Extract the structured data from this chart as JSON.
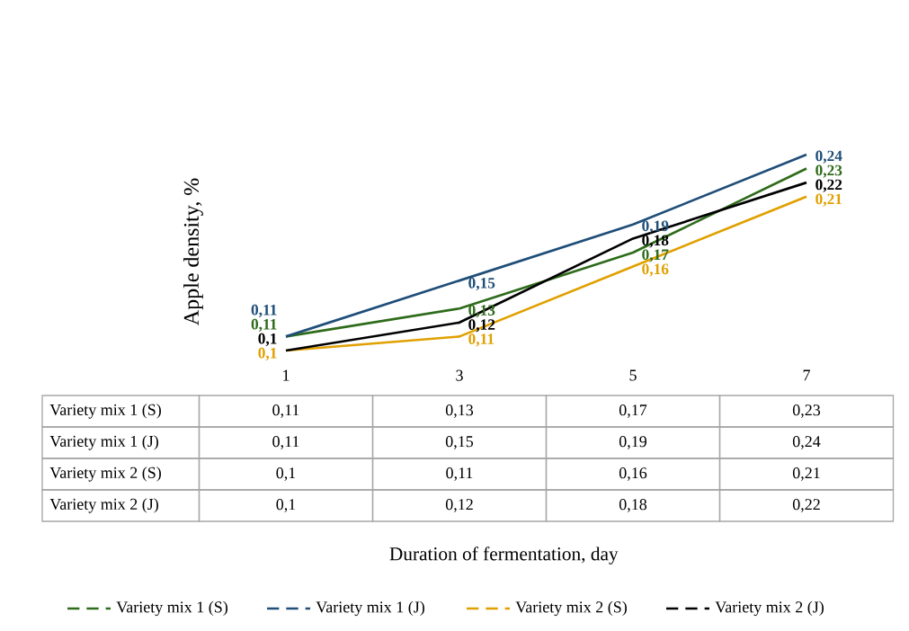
{
  "chart_data": {
    "type": "line",
    "ylabel": "Apple density, %",
    "annotations": [
      "Duration of fermentation, day"
    ],
    "categories": [
      "1",
      "3",
      "5",
      "7"
    ],
    "series": [
      {
        "name": "Variety mix 1 (S)",
        "color": "#2e6b1a",
        "values": [
          0.11,
          0.13,
          0.17,
          0.23
        ],
        "value_labels": [
          "0,11",
          "0,13",
          "0,17",
          "0,23"
        ]
      },
      {
        "name": "Variety mix 1 (J)",
        "color": "#1f4e79",
        "values": [
          0.11,
          0.15,
          0.19,
          0.24
        ],
        "value_labels": [
          "0,11",
          "0,15",
          "0,19",
          "0,24"
        ]
      },
      {
        "name": "Variety mix 2 (S)",
        "color": "#e0a000",
        "values": [
          0.1,
          0.11,
          0.16,
          0.21
        ],
        "value_labels": [
          "0,1",
          "0,11",
          "0,16",
          "0,21"
        ]
      },
      {
        "name": "Variety mix 2 (J)",
        "color": "#000000",
        "values": [
          0.1,
          0.12,
          0.18,
          0.22
        ],
        "value_labels": [
          "0,1",
          "0,12",
          "0,18",
          "0,22"
        ]
      }
    ],
    "legend": "bottom"
  }
}
